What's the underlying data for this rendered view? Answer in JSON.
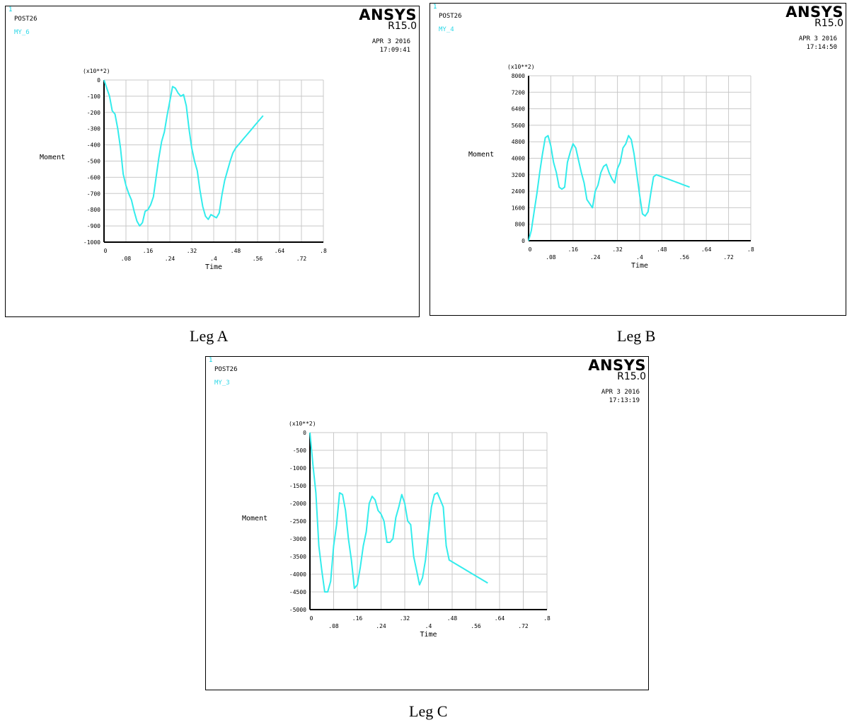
{
  "charts": [
    {
      "caption": "Leg A",
      "window_number": "1",
      "post": "POST26",
      "variable": "MY_6",
      "brand": "ANSYS",
      "release": "R15.0",
      "date": "APR  3 2016",
      "time": "17:09:41"
    },
    {
      "caption": "Leg B",
      "window_number": "1",
      "post": "POST26",
      "variable": "MY_4",
      "brand": "ANSYS",
      "release": "R15.0",
      "date": "APR  3 2016",
      "time": "17:14:50"
    },
    {
      "caption": "Leg C",
      "window_number": "1",
      "post": "POST26",
      "variable": "MY_3",
      "brand": "ANSYS",
      "release": "R15.0",
      "date": "APR  3 2016",
      "time": "17:13:19"
    }
  ],
  "chart_data": [
    {
      "type": "line",
      "xlabel": "Time",
      "ylabel": "Moment",
      "y_multiplier": "(x10**2)",
      "xlim": [
        0,
        0.8
      ],
      "ylim": [
        -1000,
        0
      ],
      "xticks": [
        "0",
        ".08",
        ".16",
        ".24",
        ".32",
        ".4",
        ".48",
        ".56",
        ".64",
        ".72",
        ".8"
      ],
      "yticks": [
        "-1000",
        "-900",
        "-800",
        "-700",
        "-600",
        "-500",
        "-400",
        "-300",
        "-200",
        "-100",
        "0"
      ],
      "grid": true,
      "line_color": "#33ecec",
      "series": [
        {
          "x": [
            0,
            0.01,
            0.02,
            0.03,
            0.04,
            0.05,
            0.06,
            0.07,
            0.08,
            0.09,
            0.1,
            0.11,
            0.12,
            0.13,
            0.14,
            0.15,
            0.16,
            0.17,
            0.18,
            0.19,
            0.2,
            0.21,
            0.22,
            0.23,
            0.24,
            0.25,
            0.26,
            0.27,
            0.28,
            0.29,
            0.3,
            0.31,
            0.32,
            0.33,
            0.34,
            0.35,
            0.36,
            0.37,
            0.38,
            0.39,
            0.4,
            0.41,
            0.42,
            0.43,
            0.44,
            0.45,
            0.46,
            0.47,
            0.48,
            0.49,
            0.5,
            0.51,
            0.52,
            0.53,
            0.54,
            0.55,
            0.56,
            0.57,
            0.58
          ],
          "y": [
            0,
            -50,
            -100,
            -190,
            -210,
            -300,
            -420,
            -580,
            -650,
            -700,
            -740,
            -810,
            -870,
            -900,
            -880,
            -810,
            -800,
            -770,
            -720,
            -600,
            -480,
            -380,
            -320,
            -220,
            -130,
            -40,
            -50,
            -80,
            -100,
            -90,
            -160,
            -300,
            -420,
            -500,
            -560,
            -680,
            -780,
            -840,
            -860,
            -830,
            -840,
            -850,
            -820,
            -710,
            -620,
            -560,
            -500,
            -450,
            -420,
            -400,
            -380,
            -360,
            -340,
            -320,
            -300,
            -280,
            -260,
            -240,
            -220
          ]
        }
      ]
    },
    {
      "type": "line",
      "xlabel": "Time",
      "ylabel": "Moment",
      "y_multiplier": "(x10**2)",
      "xlim": [
        0,
        0.8
      ],
      "ylim": [
        0,
        8000
      ],
      "xticks": [
        "0",
        ".08",
        ".16",
        ".24",
        ".32",
        ".4",
        ".48",
        ".56",
        ".64",
        ".72",
        ".8"
      ],
      "yticks": [
        "0",
        "800",
        "1600",
        "2400",
        "3200",
        "4000",
        "4800",
        "5600",
        "6400",
        "7200",
        "8000"
      ],
      "grid": true,
      "line_color": "#33ecec",
      "series": [
        {
          "x": [
            0,
            0.01,
            0.02,
            0.03,
            0.04,
            0.05,
            0.06,
            0.07,
            0.08,
            0.09,
            0.1,
            0.11,
            0.12,
            0.13,
            0.14,
            0.15,
            0.16,
            0.17,
            0.18,
            0.19,
            0.2,
            0.21,
            0.22,
            0.23,
            0.24,
            0.25,
            0.26,
            0.27,
            0.28,
            0.29,
            0.3,
            0.31,
            0.32,
            0.33,
            0.34,
            0.35,
            0.36,
            0.37,
            0.38,
            0.39,
            0.4,
            0.41,
            0.42,
            0.43,
            0.44,
            0.45,
            0.46,
            0.47,
            0.48,
            0.49,
            0.5,
            0.51,
            0.52,
            0.53,
            0.54,
            0.55,
            0.56,
            0.57,
            0.58
          ],
          "y": [
            0,
            500,
            1400,
            2300,
            3300,
            4200,
            5000,
            5100,
            4600,
            3800,
            3300,
            2600,
            2500,
            2600,
            3800,
            4300,
            4700,
            4500,
            3900,
            3300,
            2800,
            2000,
            1800,
            1600,
            2400,
            2700,
            3300,
            3600,
            3700,
            3300,
            3000,
            2800,
            3500,
            3800,
            4500,
            4700,
            5100,
            4900,
            4200,
            3200,
            2200,
            1300,
            1200,
            1400,
            2300,
            3100,
            3200,
            3150,
            3100,
            3050,
            3000,
            2950,
            2900,
            2850,
            2800,
            2750,
            2700,
            2650,
            2600
          ]
        }
      ]
    },
    {
      "type": "line",
      "xlabel": "Time",
      "ylabel": "Moment",
      "y_multiplier": "(x10**2)",
      "xlim": [
        0,
        0.8
      ],
      "ylim": [
        -5000,
        0
      ],
      "xticks": [
        "0",
        ".08",
        ".16",
        ".24",
        ".32",
        ".4",
        ".48",
        ".56",
        ".64",
        ".72",
        ".8"
      ],
      "yticks": [
        "-5000",
        "-4500",
        "-4000",
        "-3500",
        "-3000",
        "-2500",
        "-2000",
        "-1500",
        "-1000",
        "-500",
        "0"
      ],
      "grid": true,
      "line_color": "#33ecec",
      "series": [
        {
          "x": [
            0,
            0.01,
            0.02,
            0.03,
            0.04,
            0.05,
            0.06,
            0.07,
            0.08,
            0.09,
            0.1,
            0.11,
            0.12,
            0.13,
            0.14,
            0.15,
            0.16,
            0.17,
            0.18,
            0.19,
            0.2,
            0.21,
            0.22,
            0.23,
            0.24,
            0.25,
            0.26,
            0.27,
            0.28,
            0.29,
            0.3,
            0.31,
            0.32,
            0.33,
            0.34,
            0.35,
            0.36,
            0.37,
            0.38,
            0.39,
            0.4,
            0.41,
            0.42,
            0.43,
            0.44,
            0.45,
            0.46,
            0.47,
            0.48,
            0.49,
            0.5,
            0.51,
            0.52,
            0.53,
            0.54,
            0.55,
            0.56,
            0.57,
            0.58,
            0.59,
            0.6
          ],
          "y": [
            0,
            -900,
            -1700,
            -3200,
            -3900,
            -4500,
            -4500,
            -4200,
            -3200,
            -2600,
            -1700,
            -1750,
            -2200,
            -3000,
            -3600,
            -4400,
            -4300,
            -3800,
            -3200,
            -2800,
            -2000,
            -1800,
            -1900,
            -2200,
            -2300,
            -2500,
            -3100,
            -3100,
            -3000,
            -2400,
            -2100,
            -1750,
            -2000,
            -2500,
            -2600,
            -3500,
            -3900,
            -4300,
            -4100,
            -3600,
            -2800,
            -2100,
            -1750,
            -1700,
            -1900,
            -2100,
            -3200,
            -3600,
            -3650,
            -3700,
            -3750,
            -3800,
            -3850,
            -3900,
            -3950,
            -4000,
            -4050,
            -4100,
            -4150,
            -4200,
            -4250
          ]
        }
      ]
    }
  ]
}
